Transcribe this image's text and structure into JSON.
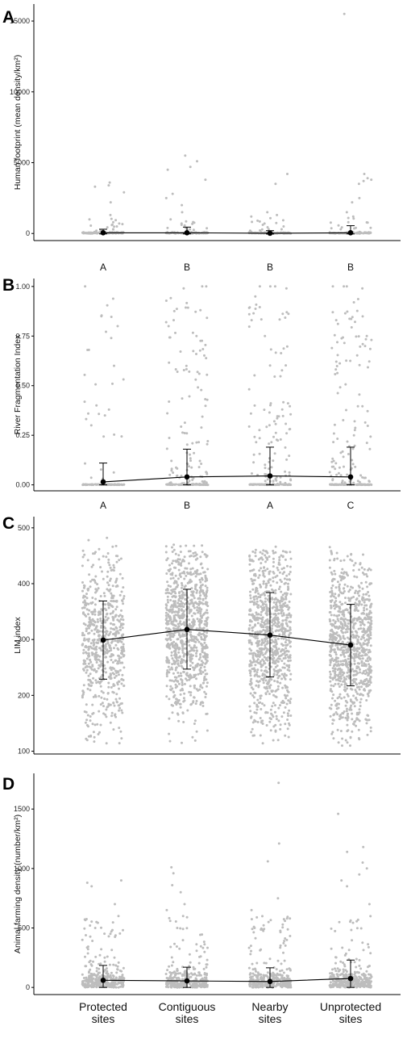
{
  "categories": [
    "Protected sites",
    "Contiguous sites",
    "Nearby sites",
    "Unprotected sites"
  ],
  "category_labels": [
    [
      "Protected",
      "sites"
    ],
    [
      "Contiguous",
      "sites"
    ],
    [
      "Nearby",
      "sites"
    ],
    [
      "Unprotected",
      "sites"
    ]
  ],
  "colors": {
    "jitter_points": "#bdbdbd",
    "mean_line": "#000000",
    "axis": "#000000"
  },
  "chart_data": [
    {
      "type": "scatter",
      "panel": "A",
      "ylabel": "Human footprint (mean density/km²)",
      "ylim": [
        -500,
        16200
      ],
      "yticks": [
        0,
        5000,
        10000,
        15000
      ],
      "sig_letters": [],
      "means": [
        50,
        50,
        20,
        50
      ],
      "err_low": [
        -30,
        -30,
        -40,
        -30
      ],
      "err_high": [
        300,
        450,
        200,
        550
      ],
      "raw_points": [
        [
          3600,
          3300,
          3400,
          2900,
          2200,
          1300,
          1000,
          700,
          600,
          500,
          300,
          200
        ],
        [
          5500,
          5100,
          4700,
          4500,
          3800,
          2800,
          2500,
          2000,
          1500,
          1000,
          700,
          400,
          300
        ],
        [
          4200,
          3500,
          1500,
          1300,
          1200,
          900,
          700,
          500,
          300,
          200
        ],
        [
          15500,
          4200,
          3900,
          3800,
          3700,
          3500,
          2500,
          2200,
          1500,
          1200,
          800,
          400,
          300
        ]
      ],
      "grid": false
    },
    {
      "type": "scatter",
      "panel": "B",
      "ylabel": "River Fragmentation Index",
      "ylim": [
        -0.03,
        1.04
      ],
      "yticks": [
        0.0,
        0.25,
        0.5,
        0.75,
        1.0
      ],
      "sig_letters": [
        "A",
        "B",
        "B",
        "B"
      ],
      "means": [
        0.015,
        0.04,
        0.045,
        0.04
      ],
      "err_low": [
        0,
        0,
        0,
        0
      ],
      "err_high": [
        0.11,
        0.18,
        0.19,
        0.19
      ],
      "raw_points": [
        [
          1.0,
          0.85,
          0.8,
          0.74,
          0.68,
          0.6,
          0.4,
          0.35,
          0.3
        ],
        [
          1.0,
          1.0,
          0.99,
          0.88,
          0.83,
          0.82,
          0.8,
          0.75
        ],
        [
          1.0,
          1.0,
          1.0,
          0.99,
          0.87,
          0.83,
          0.75
        ],
        [
          1.0,
          1.0,
          1.0,
          0.99,
          0.92,
          0.87,
          0.83,
          0.75,
          0.7
        ]
      ],
      "grid": false
    },
    {
      "type": "scatter",
      "panel": "C",
      "ylabel": "LIM index",
      "ylim": [
        95,
        520
      ],
      "yticks": [
        100,
        200,
        300,
        400,
        500
      ],
      "sig_letters": [
        "A",
        "B",
        "A",
        "C"
      ],
      "means": [
        299,
        318,
        308,
        290
      ],
      "err_low": [
        229,
        247,
        233,
        217
      ],
      "err_high": [
        369,
        390,
        384,
        363
      ],
      "raw_points": [
        [
          482,
          478,
          120,
          125,
          135
        ],
        [
          468,
          465,
          115,
          118,
          125
        ],
        [
          458,
          455,
          120,
          128,
          135
        ],
        [
          455,
          452,
          110,
          125,
          135
        ]
      ],
      "grid": false
    },
    {
      "type": "scatter",
      "panel": "D",
      "ylabel": "Animal farming density (number/km²)",
      "ylim": [
        -60,
        1800
      ],
      "yticks": [
        0,
        500,
        1000,
        1500
      ],
      "sig_letters": [],
      "means": [
        60,
        55,
        50,
        75
      ],
      "err_low": [
        0,
        0,
        0,
        0
      ],
      "err_high": [
        185,
        170,
        165,
        230
      ],
      "raw_points": [
        [
          900,
          880,
          850,
          700,
          600,
          550,
          500,
          400
        ],
        [
          960,
          1010,
          860,
          800,
          700,
          650,
          600,
          500
        ],
        [
          1720,
          1210,
          1060,
          750,
          650,
          580,
          500
        ],
        [
          1460,
          1180,
          1140,
          1050,
          1000,
          950,
          900,
          850,
          700
        ]
      ],
      "grid": false
    }
  ]
}
